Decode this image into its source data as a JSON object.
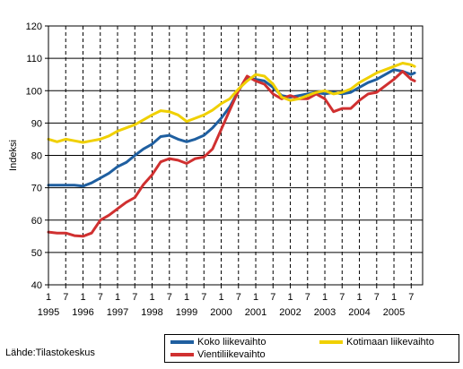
{
  "chart_data": {
    "type": "line",
    "ylabel": "Indeksi",
    "ylim": [
      40,
      120
    ],
    "yticks": [
      40,
      50,
      60,
      70,
      80,
      90,
      100,
      110,
      120
    ],
    "x_sub_labels": [
      "1",
      "7",
      "1",
      "7",
      "1",
      "7",
      "1",
      "7",
      "1",
      "7",
      "1",
      "7",
      "1",
      "7",
      "1",
      "7",
      "1",
      "7",
      "1",
      "7",
      "1",
      "7"
    ],
    "x_year_labels": [
      "1995",
      "1996",
      "1997",
      "1998",
      "1999",
      "2000",
      "2001",
      "2002",
      "2003",
      "2004",
      "2005"
    ],
    "x_range": [
      1995.0,
      2005.83
    ],
    "grid": true,
    "legend_position": "bottom-right",
    "series": [
      {
        "name": "Koko liikevaihto",
        "color": "#1f5fa0",
        "points": [
          [
            1995.0,
            70.8
          ],
          [
            1995.25,
            70.8
          ],
          [
            1995.5,
            70.8
          ],
          [
            1995.75,
            70.8
          ],
          [
            1996.0,
            70.5
          ],
          [
            1996.25,
            71.5
          ],
          [
            1996.5,
            73.0
          ],
          [
            1996.75,
            74.5
          ],
          [
            1997.0,
            76.5
          ],
          [
            1997.25,
            77.8
          ],
          [
            1997.5,
            80.0
          ],
          [
            1997.75,
            82.0
          ],
          [
            1998.0,
            83.5
          ],
          [
            1998.25,
            85.8
          ],
          [
            1998.5,
            86.2
          ],
          [
            1998.75,
            85.0
          ],
          [
            1999.0,
            84.2
          ],
          [
            1999.25,
            85.0
          ],
          [
            1999.5,
            86.2
          ],
          [
            1999.75,
            88.5
          ],
          [
            2000.0,
            91.5
          ],
          [
            2000.25,
            95.0
          ],
          [
            2000.5,
            100.0
          ],
          [
            2000.75,
            104.0
          ],
          [
            2001.0,
            103.5
          ],
          [
            2001.25,
            103.0
          ],
          [
            2001.5,
            101.0
          ],
          [
            2001.75,
            98.5
          ],
          [
            2002.0,
            98.0
          ],
          [
            2002.25,
            98.5
          ],
          [
            2002.5,
            99.0
          ],
          [
            2002.75,
            99.5
          ],
          [
            2003.0,
            99.0
          ],
          [
            2003.25,
            99.5
          ],
          [
            2003.5,
            99.0
          ],
          [
            2003.75,
            99.5
          ],
          [
            2004.0,
            101.0
          ],
          [
            2004.25,
            102.5
          ],
          [
            2004.5,
            103.5
          ],
          [
            2004.75,
            105.0
          ],
          [
            2005.0,
            106.5
          ],
          [
            2005.25,
            106.0
          ],
          [
            2005.5,
            105.0
          ],
          [
            2005.6,
            105.5
          ]
        ]
      },
      {
        "name": "Vientiliikevaihto",
        "color": "#d03030",
        "points": [
          [
            1995.0,
            56.3
          ],
          [
            1995.25,
            56.0
          ],
          [
            1995.5,
            56.0
          ],
          [
            1995.75,
            55.2
          ],
          [
            1996.0,
            55.0
          ],
          [
            1996.25,
            56.0
          ],
          [
            1996.5,
            60.0
          ],
          [
            1996.75,
            61.5
          ],
          [
            1997.0,
            63.5
          ],
          [
            1997.25,
            65.5
          ],
          [
            1997.5,
            67.0
          ],
          [
            1997.75,
            71.0
          ],
          [
            1998.0,
            74.0
          ],
          [
            1998.25,
            78.0
          ],
          [
            1998.5,
            79.0
          ],
          [
            1998.75,
            78.5
          ],
          [
            1999.0,
            77.5
          ],
          [
            1999.25,
            79.0
          ],
          [
            1999.5,
            79.5
          ],
          [
            1999.75,
            82.0
          ],
          [
            2000.0,
            88.0
          ],
          [
            2000.25,
            94.0
          ],
          [
            2000.5,
            100.0
          ],
          [
            2000.75,
            104.5
          ],
          [
            2001.0,
            103.0
          ],
          [
            2001.25,
            102.0
          ],
          [
            2001.5,
            99.0
          ],
          [
            2001.75,
            97.5
          ],
          [
            2002.0,
            98.5
          ],
          [
            2002.25,
            97.5
          ],
          [
            2002.5,
            97.5
          ],
          [
            2002.75,
            99.0
          ],
          [
            2003.0,
            97.5
          ],
          [
            2003.25,
            93.5
          ],
          [
            2003.5,
            94.5
          ],
          [
            2003.75,
            94.5
          ],
          [
            2004.0,
            97.0
          ],
          [
            2004.25,
            99.0
          ],
          [
            2004.5,
            99.5
          ],
          [
            2004.75,
            101.5
          ],
          [
            2005.0,
            103.5
          ],
          [
            2005.25,
            106.0
          ],
          [
            2005.5,
            103.5
          ],
          [
            2005.6,
            103.0
          ]
        ]
      },
      {
        "name": "Kotimaan liikevaihto",
        "color": "#f0d000",
        "points": [
          [
            1995.0,
            85.0
          ],
          [
            1995.25,
            84.2
          ],
          [
            1995.5,
            85.0
          ],
          [
            1995.75,
            84.5
          ],
          [
            1996.0,
            84.0
          ],
          [
            1996.25,
            84.5
          ],
          [
            1996.5,
            85.0
          ],
          [
            1996.75,
            86.0
          ],
          [
            1997.0,
            87.5
          ],
          [
            1997.25,
            88.5
          ],
          [
            1997.5,
            89.5
          ],
          [
            1997.75,
            91.0
          ],
          [
            1998.0,
            92.5
          ],
          [
            1998.25,
            93.8
          ],
          [
            1998.5,
            93.5
          ],
          [
            1998.75,
            92.5
          ],
          [
            1999.0,
            90.5
          ],
          [
            1999.25,
            91.5
          ],
          [
            1999.5,
            92.5
          ],
          [
            1999.75,
            94.0
          ],
          [
            2000.0,
            96.0
          ],
          [
            2000.25,
            97.5
          ],
          [
            2000.5,
            100.5
          ],
          [
            2000.75,
            103.0
          ],
          [
            2001.0,
            105.0
          ],
          [
            2001.25,
            104.5
          ],
          [
            2001.5,
            102.0
          ],
          [
            2001.75,
            98.0
          ],
          [
            2002.0,
            97.0
          ],
          [
            2002.25,
            97.5
          ],
          [
            2002.5,
            98.5
          ],
          [
            2002.75,
            99.5
          ],
          [
            2003.0,
            100.0
          ],
          [
            2003.25,
            99.0
          ],
          [
            2003.5,
            99.5
          ],
          [
            2003.75,
            100.5
          ],
          [
            2004.0,
            102.5
          ],
          [
            2004.25,
            104.0
          ],
          [
            2004.5,
            105.5
          ],
          [
            2004.75,
            106.5
          ],
          [
            2005.0,
            107.5
          ],
          [
            2005.25,
            108.5
          ],
          [
            2005.5,
            108.0
          ],
          [
            2005.6,
            107.5
          ]
        ]
      }
    ]
  },
  "legend": {
    "items": [
      "Koko liikevaihto",
      "Kotimaan liikevaihto",
      "Vientiliikevaihto"
    ]
  },
  "source_text": "Lähde:Tilastokeskus"
}
